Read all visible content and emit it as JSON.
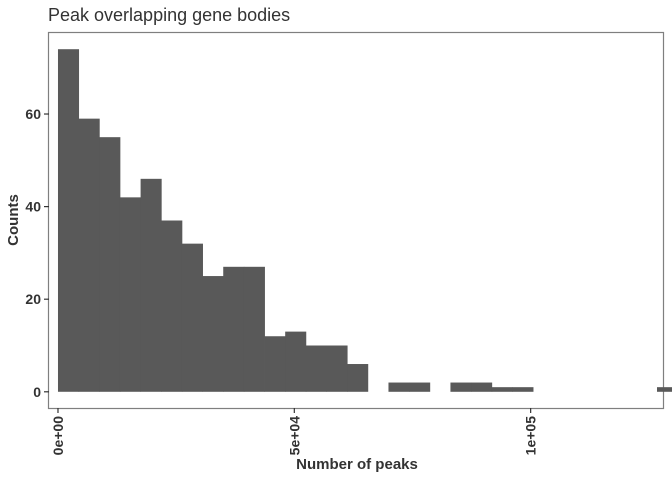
{
  "chart_data": {
    "type": "bar",
    "title": "Peak overlapping gene bodies",
    "xlabel": "Number of peaks",
    "ylabel": "Counts",
    "bin_width": 4370,
    "bin_starts": [
      0,
      4370,
      8740,
      13110,
      17480,
      21850,
      26220,
      30590,
      34960,
      39330,
      43700,
      48070,
      52440,
      56810,
      61180,
      65550,
      69920,
      74290,
      78660,
      83030,
      87400,
      91770,
      96140,
      100510,
      104880,
      109250,
      113620,
      117990,
      122360,
      126730
    ],
    "values": [
      74,
      59,
      55,
      42,
      46,
      37,
      32,
      25,
      27,
      27,
      12,
      13,
      10,
      10,
      6,
      0,
      2,
      2,
      0,
      2,
      2,
      1,
      1,
      0,
      0,
      0,
      0,
      0,
      0,
      1
    ],
    "xlim": [
      -1900,
      128000
    ],
    "ylim": [
      -3.5,
      77.5
    ],
    "x_ticks": [
      {
        "value": 0,
        "label": "0e+00"
      },
      {
        "value": 50000,
        "label": "5e+04"
      },
      {
        "value": 100000,
        "label": "1e+05"
      }
    ],
    "y_ticks": [
      {
        "value": 0,
        "label": "0"
      },
      {
        "value": 20,
        "label": "20"
      },
      {
        "value": 40,
        "label": "40"
      },
      {
        "value": 60,
        "label": "60"
      }
    ],
    "grid": false,
    "legend": "none",
    "bar_color": "#595959"
  }
}
